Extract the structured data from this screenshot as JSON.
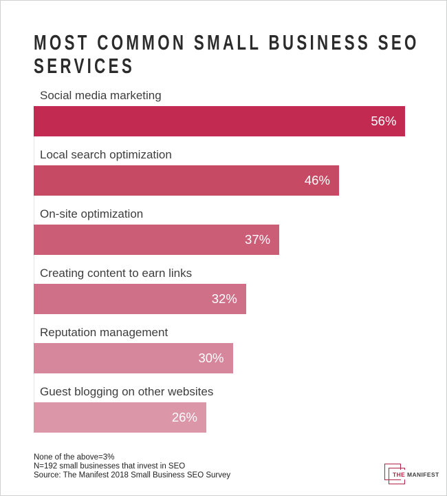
{
  "header": {
    "title_lines": [
      "MOST COMMON SMALL BUSINESS SEO",
      "SERVICES"
    ]
  },
  "chart_data": {
    "type": "bar",
    "orientation": "horizontal",
    "title": "Most Common Small Business SEO Services",
    "categories": [
      "Social media marketing",
      "Local search optimization",
      "On-site optimization",
      "Creating content to earn links",
      "Reputation management",
      "Guest blogging on other websites"
    ],
    "values": [
      56,
      46,
      37,
      32,
      30,
      26
    ],
    "value_labels": [
      "56%",
      "46%",
      "37%",
      "32%",
      "30%",
      "26%"
    ],
    "unit": "%",
    "bar_colors": [
      "#c22a51",
      "#c64a63",
      "#cb5e76",
      "#d06f88",
      "#d6879b",
      "#db96a8"
    ],
    "axis_max": 57.2,
    "value_label_position": "inside-end",
    "legend": "none",
    "grid": "off",
    "annotations": [
      "None of the above=3%",
      "N=192 small businesses that invest in SEO",
      "Source: The Manifest 2018 Small Business SEO Survey"
    ]
  },
  "footer": {
    "logo": {
      "the": "THE",
      "manifest": "MANIFEST",
      "accent_color": "#b32346"
    }
  },
  "colors": {
    "background": "#ffffff",
    "page_border": "#cfd0d1",
    "title_text": "#2b2b2b",
    "label_text": "#3d3d3d",
    "value_text": "#ffffff",
    "axis_line": "#e4e4e4"
  }
}
